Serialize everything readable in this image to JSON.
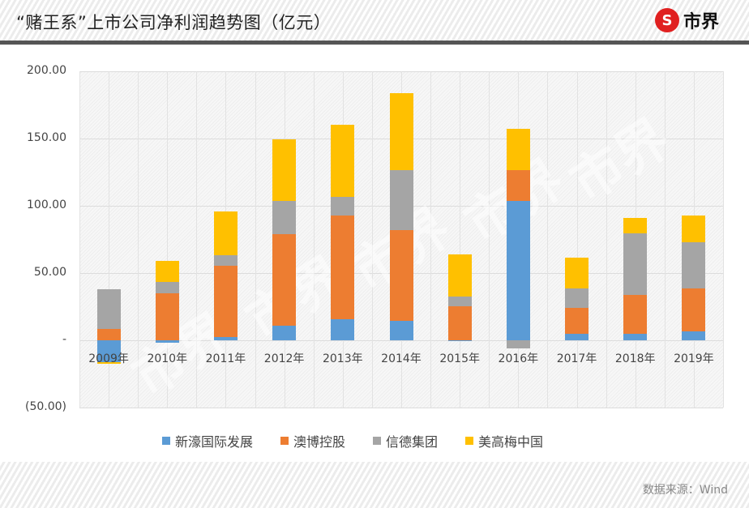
{
  "header": {
    "title": "“赌王系”上市公司净利润趋势图（亿元）",
    "logo_text": "市界",
    "logo_icon": "S"
  },
  "footer": {
    "source": "数据来源：Wind"
  },
  "colors": {
    "新濠国际发展": "#5b9bd5",
    "澳博控股": "#ed7d31",
    "信德集团": "#a5a5a5",
    "美高梅中国": "#ffc000"
  },
  "chart_data": {
    "type": "bar",
    "stacked": true,
    "title": "“赌王系”上市公司净利润趋势图（亿元）",
    "xlabel": "",
    "ylabel": "",
    "ylim": [
      -50,
      200
    ],
    "yticks": [
      "200.00",
      "150.00",
      "100.00",
      "50.00",
      "-",
      "(50.00)"
    ],
    "ytick_values": [
      200,
      150,
      100,
      50,
      0,
      -50
    ],
    "grid": true,
    "legend_position": "bottom",
    "categories": [
      "2009年",
      "2010年",
      "2011年",
      "2012年",
      "2013年",
      "2014年",
      "2015年",
      "2016年",
      "2017年",
      "2018年",
      "2019年"
    ],
    "series": [
      {
        "name": "新濠国际发展",
        "color": "#5b9bd5",
        "values": [
          -16.0,
          -2.0,
          2.4,
          10.8,
          15.7,
          14.5,
          0.3,
          103.6,
          4.8,
          4.8,
          6.6
        ]
      },
      {
        "name": "澳博控股",
        "color": "#ed7d31",
        "values": [
          8.4,
          35.0,
          53.0,
          68.1,
          77.1,
          67.4,
          25.0,
          22.9,
          19.3,
          28.9,
          32.0
        ]
      },
      {
        "name": "信德集团",
        "color": "#a5a5a5",
        "values": [
          29.6,
          8.4,
          7.9,
          24.7,
          13.8,
          44.6,
          7.2,
          -6.0,
          14.5,
          45.8,
          34.3
        ]
      },
      {
        "name": "美高梅中国",
        "color": "#ffc000",
        "values": [
          -1.5,
          15.6,
          32.5,
          45.8,
          53.4,
          57.2,
          31.4,
          30.5,
          22.8,
          11.5,
          19.9
        ]
      }
    ],
    "source": "数据来源：Wind"
  }
}
